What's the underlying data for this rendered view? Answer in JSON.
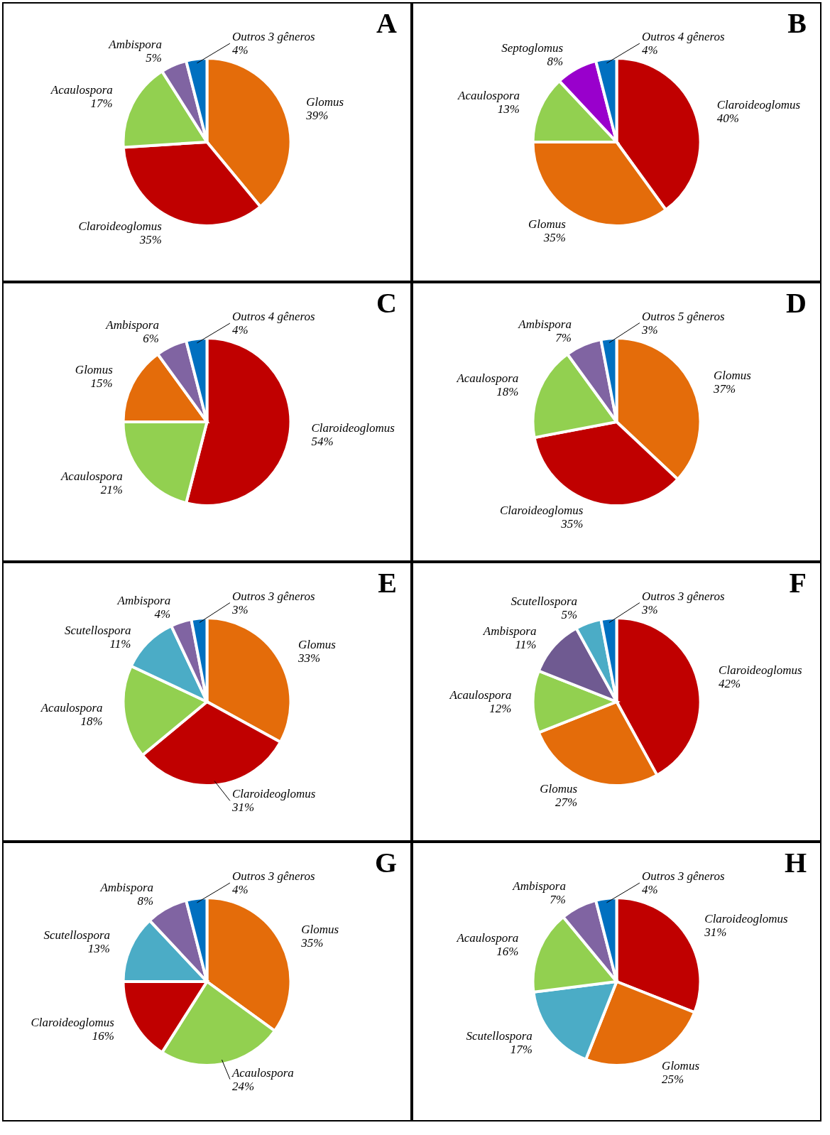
{
  "chart_data": [
    {
      "type": "pie",
      "title": "A",
      "categories": [
        "Glomus",
        "Claroideoglomus",
        "Acaulospora",
        "Ambispora",
        "Outros 3 gêneros"
      ],
      "values": [
        39,
        35,
        17,
        5,
        4
      ],
      "value_labels": [
        "39%",
        "35%",
        "17%",
        "5%",
        "4%"
      ],
      "colors": [
        "#e46c0a",
        "#c00000",
        "#92d050",
        "#8064a2",
        "#0070c0"
      ]
    },
    {
      "type": "pie",
      "title": "B",
      "categories": [
        "Claroideoglomus",
        "Glomus",
        "Acaulospora",
        "Septoglomus",
        "Outros 4 gêneros"
      ],
      "values": [
        40,
        35,
        13,
        8,
        4
      ],
      "value_labels": [
        "40%",
        "35%",
        "13%",
        "8%",
        "4%"
      ],
      "colors": [
        "#c00000",
        "#e46c0a",
        "#92d050",
        "#9900cc",
        "#0070c0"
      ]
    },
    {
      "type": "pie",
      "title": "C",
      "categories": [
        "Claroideoglomus",
        "Acaulospora",
        "Glomus",
        "Ambispora",
        "Outros 4 gêneros"
      ],
      "values": [
        54,
        21,
        15,
        6,
        4
      ],
      "value_labels": [
        "54%",
        "21%",
        "15%",
        "6%",
        "4%"
      ],
      "colors": [
        "#c00000",
        "#92d050",
        "#e46c0a",
        "#8064a2",
        "#0070c0"
      ]
    },
    {
      "type": "pie",
      "title": "D",
      "categories": [
        "Glomus",
        "Claroideoglomus",
        "Acaulospora",
        "Ambispora",
        "Outros 5 gêneros"
      ],
      "values": [
        37,
        35,
        18,
        7,
        3
      ],
      "value_labels": [
        "37%",
        "35%",
        "18%",
        "7%",
        "3%"
      ],
      "colors": [
        "#e46c0a",
        "#c00000",
        "#92d050",
        "#8064a2",
        "#0070c0"
      ]
    },
    {
      "type": "pie",
      "title": "E",
      "categories": [
        "Glomus",
        "Claroideoglomus",
        "Acaulospora",
        "Scutellospora",
        "Ambispora",
        "Outros 3 gêneros"
      ],
      "values": [
        33,
        31,
        18,
        11,
        4,
        3
      ],
      "value_labels": [
        "33%",
        "31%",
        "18%",
        "11%",
        "4%",
        "3%"
      ],
      "colors": [
        "#e46c0a",
        "#c00000",
        "#92d050",
        "#4bacc6",
        "#8064a2",
        "#0070c0"
      ]
    },
    {
      "type": "pie",
      "title": "F",
      "categories": [
        "Claroideoglomus",
        "Glomus",
        "Acaulospora",
        "Ambispora",
        "Scutellospora",
        "Outros 3 gêneros"
      ],
      "values": [
        42,
        27,
        12,
        11,
        5,
        3
      ],
      "value_labels": [
        "42%",
        "27%",
        "12%",
        "11%",
        "5%",
        "3%"
      ],
      "colors": [
        "#c00000",
        "#e46c0a",
        "#92d050",
        "#6f5a91",
        "#4bacc6",
        "#0070c0"
      ]
    },
    {
      "type": "pie",
      "title": "G",
      "categories": [
        "Glomus",
        "Acaulospora",
        "Claroideoglomus",
        "Scutellospora",
        "Ambispora",
        "Outros 3 gêneros"
      ],
      "values": [
        35,
        24,
        16,
        13,
        8,
        4
      ],
      "value_labels": [
        "35%",
        "24%",
        "16%",
        "13%",
        "8%",
        "4%"
      ],
      "colors": [
        "#e46c0a",
        "#92d050",
        "#c00000",
        "#4bacc6",
        "#8064a2",
        "#0070c0"
      ]
    },
    {
      "type": "pie",
      "title": "H",
      "categories": [
        "Claroideoglomus",
        "Glomus",
        "Scutellospora",
        "Acaulospora",
        "Ambispora",
        "Outros 3 gêneros"
      ],
      "values": [
        31,
        25,
        17,
        16,
        7,
        4
      ],
      "value_labels": [
        "31%",
        "25%",
        "17%",
        "16%",
        "7%",
        "4%"
      ],
      "colors": [
        "#c00000",
        "#e46c0a",
        "#4bacc6",
        "#92d050",
        "#8064a2",
        "#0070c0"
      ]
    }
  ]
}
